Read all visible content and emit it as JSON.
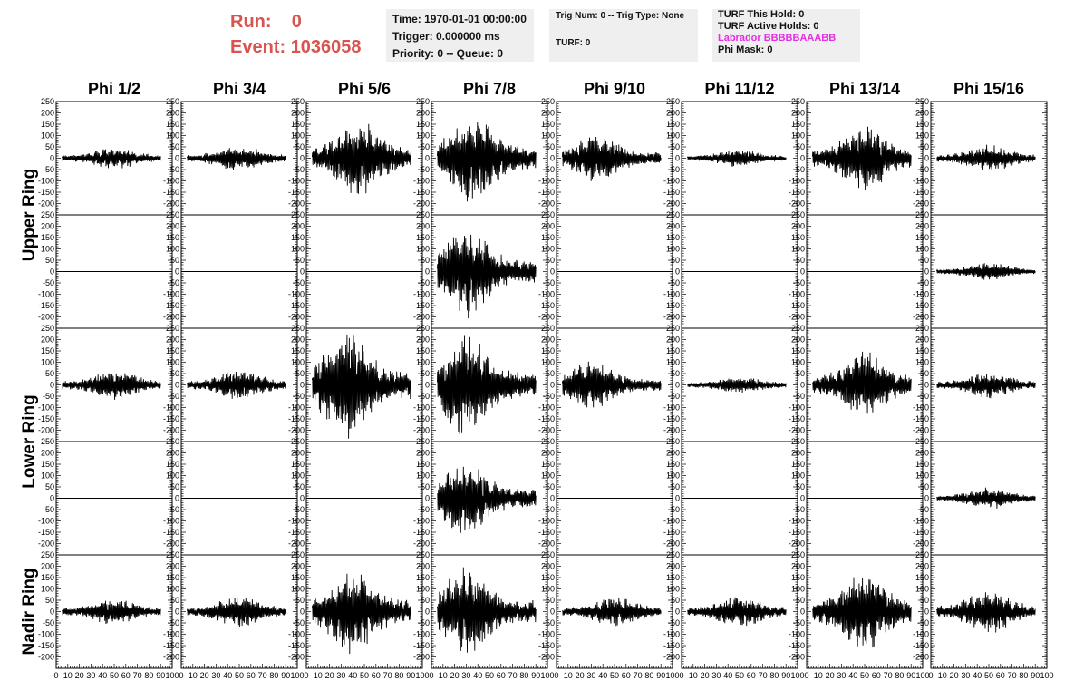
{
  "header": {
    "run_label": "Run:",
    "run_value": "0",
    "event_label": "Event:",
    "event_value": "1036058"
  },
  "info_box_1": {
    "time": "Time: 1970-01-01 00:00:00",
    "trigger": "Trigger: 0.000000 ms",
    "priority": "Priority: 0 -- Queue: 0"
  },
  "info_box_2": {
    "trig": "Trig Num: 0 -- Trig Type: None",
    "turf": "TURF: 0"
  },
  "info_box_3": {
    "this_hold": "TURF This Hold: 0",
    "active_holds": "TURF Active Holds: 0",
    "labrador": "Labrador BBBBBAAABB",
    "phi_mask": "Phi Mask: 0"
  },
  "chart_data": {
    "type": "line",
    "columns": [
      "Phi 1/2",
      "Phi 3/4",
      "Phi 5/6",
      "Phi 7/8",
      "Phi 9/10",
      "Phi 11/12",
      "Phi 13/14",
      "Phi 15/16"
    ],
    "ring_labels": [
      "Upper Ring",
      "Lower Ring",
      "Nadir Ring"
    ],
    "rows_per_ring": [
      2,
      2,
      1
    ],
    "ylim": [
      -250,
      250
    ],
    "xlim": [
      0,
      100
    ],
    "yticks": [
      -200,
      -150,
      -100,
      -50,
      0,
      50,
      100,
      150,
      200,
      250
    ],
    "ytick_labels": [
      "-200",
      "-150",
      "-100",
      "-50",
      "0",
      "50",
      "100",
      "150",
      "200",
      "250"
    ],
    "xtick_labels": [
      "0",
      "10",
      "20",
      "30",
      "40",
      "50",
      "60",
      "70",
      "80",
      "90",
      "100"
    ],
    "peak_amplitude": [
      [
        50,
        60,
        170,
        200,
        110,
        40,
        150,
        60
      ],
      [
        0,
        0,
        0,
        210,
        0,
        0,
        0,
        40
      ],
      [
        70,
        70,
        250,
        230,
        110,
        40,
        150,
        60
      ],
      [
        0,
        0,
        0,
        170,
        0,
        0,
        0,
        50
      ],
      [
        60,
        70,
        200,
        200,
        70,
        70,
        180,
        100
      ]
    ],
    "burst_center": [
      [
        50,
        50,
        45,
        35,
        35,
        50,
        50,
        50
      ],
      [
        50,
        50,
        50,
        30,
        50,
        50,
        50,
        50
      ],
      [
        50,
        50,
        35,
        30,
        30,
        50,
        50,
        50
      ],
      [
        50,
        50,
        50,
        30,
        50,
        50,
        50,
        50
      ],
      [
        50,
        50,
        40,
        30,
        50,
        50,
        50,
        50
      ]
    ]
  }
}
